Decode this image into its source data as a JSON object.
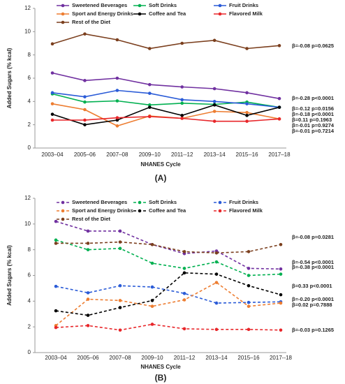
{
  "chart_data": [
    {
      "type": "line",
      "panel_label": "(A)",
      "y_label": "Added Sugars (% kcal)",
      "x_label": "NHANES Cycle",
      "categories": [
        "2003–04",
        "2005–06",
        "2007–08",
        "2009–10",
        "2011--12",
        "2013–14",
        "2015--16",
        "2017–18"
      ],
      "ylim": [
        0,
        12
      ],
      "yticks": [
        0,
        2,
        4,
        6,
        8,
        10,
        12
      ],
      "line_style": "solid",
      "series": [
        {
          "name": "Sweetened Beverages",
          "color": "#7030a0",
          "values": [
            6.45,
            5.8,
            6.0,
            5.45,
            5.25,
            5.1,
            4.75,
            4.25
          ]
        },
        {
          "name": "Soft Drinks",
          "color": "#00b050",
          "values": [
            4.65,
            3.95,
            4.05,
            3.7,
            3.85,
            3.75,
            3.95,
            3.5
          ]
        },
        {
          "name": "Fruit Drinks",
          "color": "#2a5bd7",
          "values": [
            4.75,
            4.4,
            4.95,
            4.7,
            4.15,
            4.0,
            3.8,
            3.5
          ]
        },
        {
          "name": "Sport and Energy Drinks",
          "color": "#ed7d31",
          "values": [
            3.8,
            3.3,
            1.9,
            2.75,
            2.55,
            3.15,
            3.05,
            2.5
          ]
        },
        {
          "name": "Coffee and Tea",
          "color": "#000000",
          "values": [
            2.9,
            2.0,
            2.4,
            3.5,
            2.8,
            3.7,
            2.8,
            3.5
          ]
        },
        {
          "name": "Flavored Milk",
          "color": "#e8262a",
          "values": [
            2.4,
            2.4,
            2.6,
            2.7,
            2.55,
            2.3,
            2.3,
            2.5
          ]
        },
        {
          "name": "Rest of the Diet",
          "color": "#7b3f1e",
          "values": [
            8.95,
            9.8,
            9.3,
            8.55,
            9.0,
            9.25,
            8.55,
            8.8
          ]
        }
      ],
      "annotations": [
        "β=-0.08 p=0.0625",
        "β=-0.28 p<0.0001",
        "β=-0.12 p=0.0156",
        "β=-0.18 p<0.0001",
        "β=0.11 p=0.1963",
        "β=-0.01 p=0.9274",
        "β=-0.01 p=0.7214"
      ]
    },
    {
      "type": "line",
      "panel_label": "(B)",
      "y_label": "Added Sugars (% kcal)",
      "x_label": "NHANES Cycle",
      "categories": [
        "2003–04",
        "2005–06",
        "2007–08",
        "2009–10",
        "2011–12",
        "2013–14",
        "2015–16",
        "2017--18"
      ],
      "ylim": [
        0,
        12
      ],
      "yticks": [
        0,
        2,
        4,
        6,
        8,
        10,
        12
      ],
      "line_style": "dashed",
      "series": [
        {
          "name": "Sweetened Beverages",
          "color": "#7030a0",
          "values": [
            10.2,
            9.45,
            9.45,
            8.4,
            7.7,
            7.9,
            6.55,
            6.5
          ]
        },
        {
          "name": "Soft Drinks",
          "color": "#00b050",
          "values": [
            8.75,
            8.0,
            8.1,
            6.95,
            6.55,
            7.05,
            6.0,
            6.1
          ]
        },
        {
          "name": "Fruit Drinks",
          "color": "#2a5bd7",
          "values": [
            5.15,
            4.65,
            5.2,
            5.1,
            4.6,
            3.85,
            3.9,
            3.95
          ]
        },
        {
          "name": "Sport and Energy Drinks",
          "color": "#ed7d31",
          "values": [
            2.1,
            4.15,
            4.05,
            3.6,
            4.1,
            5.45,
            3.6,
            3.85
          ]
        },
        {
          "name": "Coffee and Tea",
          "color": "#000000",
          "values": [
            3.25,
            2.9,
            3.5,
            4.05,
            6.2,
            6.1,
            5.2,
            4.5
          ]
        },
        {
          "name": "Flavored Milk",
          "color": "#e8262a",
          "values": [
            1.95,
            2.1,
            1.75,
            2.2,
            1.85,
            1.8,
            1.8,
            1.75
          ]
        },
        {
          "name": "Rest of the Diet",
          "color": "#7b3f1e",
          "values": [
            8.5,
            8.5,
            8.6,
            8.4,
            7.85,
            7.75,
            7.85,
            8.4
          ]
        }
      ],
      "annotations": [
        "β=-0.08 p=0.0281",
        "β=-0.54 p<0.0001",
        "β=-0.38 p<0.0001",
        "β=0.33 p<0.0001",
        "β=-0.20 p<0.0001",
        "β=0.02 p=0.7888",
        "β=-0.03 p=0.1265"
      ]
    }
  ]
}
